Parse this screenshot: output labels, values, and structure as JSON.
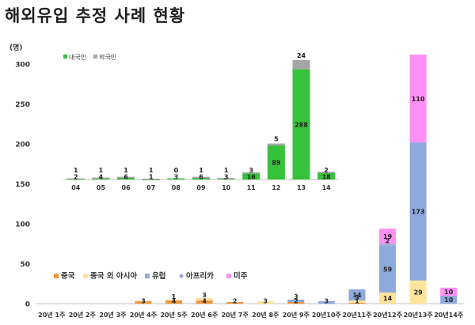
{
  "title": "해외유입 추정 사례 현황",
  "chart_data": [
    {
      "type": "bar",
      "stacked": true,
      "ylabel": "(명)",
      "ylim": [
        0,
        320
      ],
      "yticks": [
        0,
        50,
        100,
        150,
        200,
        250,
        300
      ],
      "legend_position": "bottom-left",
      "categories": [
        "20년 1주",
        "20년 2주",
        "20년 3주",
        "20년 4주",
        "20년 5주",
        "20년 6주",
        "20년 7주",
        "20년 8주",
        "20년 9주",
        "20년10주",
        "20년11주",
        "20년12주",
        "20년13주",
        "20년14주"
      ],
      "series": [
        {
          "name": "중국",
          "color": "#f0953a",
          "values": [
            0,
            0,
            0,
            3,
            4,
            4,
            2,
            0,
            2,
            0,
            1,
            0,
            0,
            0
          ],
          "labels": [
            "",
            "",
            "",
            "3",
            "4",
            "4",
            "2",
            "",
            "2",
            "",
            "1",
            "",
            "",
            ""
          ]
        },
        {
          "name": "중국 외 아시아",
          "color": "#fde49a",
          "values": [
            0,
            0,
            0,
            0,
            1,
            3,
            0,
            3,
            0,
            0,
            3,
            14,
            29,
            0
          ],
          "labels": [
            "",
            "",
            "",
            "",
            "1",
            "3",
            "",
            "3",
            "",
            "",
            "3",
            "14",
            "29",
            ""
          ]
        },
        {
          "name": "유럽",
          "color": "#8ea9db",
          "values": [
            0,
            0,
            0,
            0,
            0,
            0,
            0,
            0,
            3,
            3,
            14,
            59,
            173,
            10
          ],
          "labels": [
            "",
            "",
            "",
            "",
            "",
            "",
            "",
            "",
            "3",
            "3",
            "14",
            "59",
            "173",
            "10"
          ]
        },
        {
          "name": "아프리카",
          "color": "#9aa9cf",
          "values": [
            0,
            0,
            0,
            0,
            0,
            0,
            0,
            0,
            0,
            0,
            0,
            2,
            0,
            0
          ],
          "labels": [
            "",
            "",
            "",
            "",
            "",
            "",
            "",
            "",
            "",
            "",
            "",
            "2",
            "",
            ""
          ]
        },
        {
          "name": "미주",
          "color": "#ff8ff5",
          "values": [
            0,
            0,
            0,
            0,
            0,
            0,
            0,
            0,
            0,
            0,
            0,
            19,
            110,
            10
          ],
          "labels": [
            "",
            "",
            "",
            "",
            "",
            "",
            "",
            "",
            "",
            "",
            "",
            "19",
            "110",
            "10"
          ]
        }
      ]
    },
    {
      "type": "bar",
      "stacked": true,
      "legend_position": "top-left",
      "categories": [
        "04",
        "05",
        "06",
        "07",
        "08",
        "09",
        "10",
        "11",
        "12",
        "13",
        "14"
      ],
      "series": [
        {
          "name": "내국인",
          "color": "#36c23a",
          "values": [
            2,
            4,
            6,
            1,
            3,
            6,
            3,
            16,
            89,
            288,
            18
          ]
        },
        {
          "name": "외국인",
          "color": "#a6a6a6",
          "values": [
            1,
            1,
            1,
            1,
            0,
            1,
            1,
            3,
            5,
            24,
            2
          ]
        }
      ]
    }
  ]
}
